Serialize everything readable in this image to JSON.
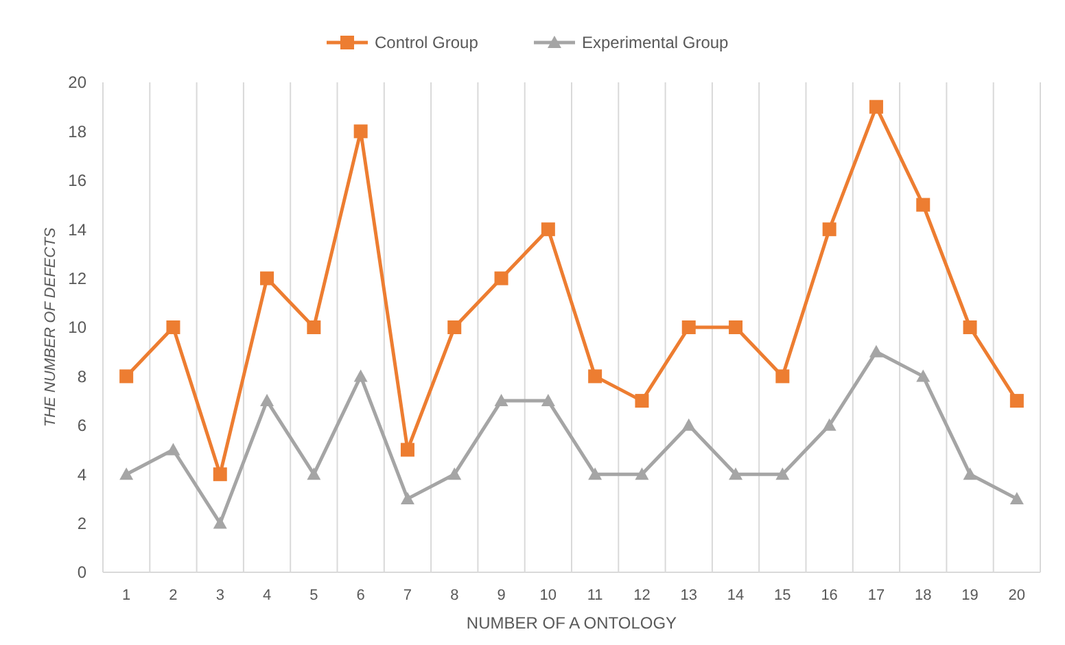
{
  "chart_data": {
    "type": "line",
    "xlabel": "NUMBER OF A ONTOLOGY",
    "ylabel": "THE NUMBER OF DEFECTS",
    "categories": [
      "1",
      "2",
      "3",
      "4",
      "5",
      "6",
      "7",
      "8",
      "9",
      "10",
      "11",
      "12",
      "13",
      "14",
      "15",
      "16",
      "17",
      "18",
      "19",
      "20"
    ],
    "series": [
      {
        "name": "Control Group",
        "color": "#ed7d31",
        "marker": "square",
        "values": [
          8,
          10,
          4,
          12,
          10,
          18,
          5,
          10,
          12,
          14,
          8,
          7,
          10,
          10,
          8,
          14,
          19,
          15,
          10,
          7
        ]
      },
      {
        "name": "Experimental Group",
        "color": "#a5a5a5",
        "marker": "triangle",
        "values": [
          4,
          5,
          2,
          7,
          4,
          8,
          3,
          4,
          7,
          7,
          4,
          4,
          6,
          4,
          4,
          6,
          9,
          8,
          4,
          3
        ]
      }
    ],
    "ylim": [
      0,
      20
    ],
    "yticks": [
      0,
      2,
      4,
      6,
      8,
      10,
      12,
      14,
      16,
      18,
      20
    ],
    "grid": "x",
    "legend": "top",
    "line_style": "solid"
  }
}
